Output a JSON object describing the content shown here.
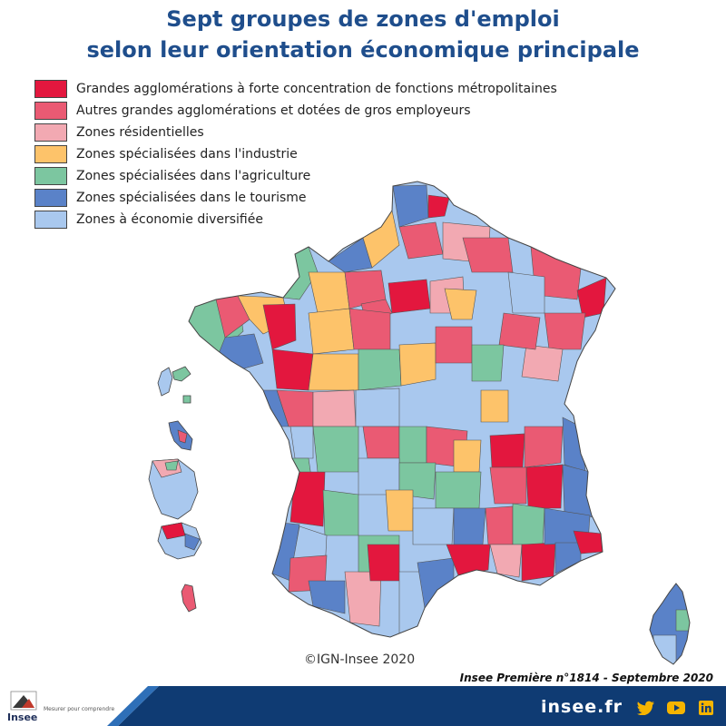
{
  "title": {
    "line1": "Sept groupes de zones d'emploi",
    "line2": "selon leur orientation économique principale"
  },
  "legend": [
    {
      "label": "Grandes agglomérations à forte concentration de fonctions métropolitaines",
      "color": "#e3173e"
    },
    {
      "label": "Autres grandes agglomérations et dotées de gros employeurs",
      "color": "#ea5a73"
    },
    {
      "label": "Zones résidentielles",
      "color": "#f2a9b2"
    },
    {
      "label": "Zones spécialisées dans l'industrie",
      "color": "#fdc36a"
    },
    {
      "label": "Zones spécialisées dans l'agriculture",
      "color": "#7cc6a0"
    },
    {
      "label": "Zones spécialisées dans le tourisme",
      "color": "#5a82c8"
    },
    {
      "label": "Zones à économie diversifiée",
      "color": "#a9c8ee"
    }
  ],
  "copyright": "©IGN-Insee 2020",
  "publication": "Insee Première n°1814 - Septembre 2020",
  "footer": {
    "brand": "insee.fr",
    "logo_name": "Insee",
    "logo_tagline": "Mesurer pour comprendre",
    "band_color": "#0f3b73",
    "social_icons": [
      "twitter-icon",
      "youtube-icon",
      "linkedin-icon"
    ]
  },
  "map": {
    "regions": [
      "France métropolitaine",
      "Corse",
      "Guadeloupe",
      "Martinique",
      "Guyane",
      "La Réunion",
      "Mayotte"
    ]
  }
}
